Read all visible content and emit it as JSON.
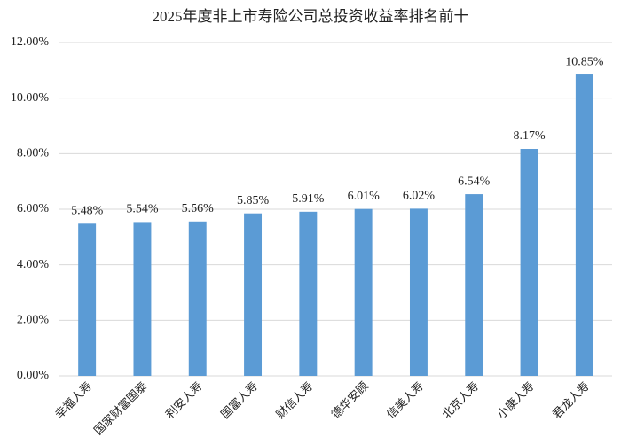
{
  "chart_data": {
    "type": "bar",
    "title": "2025年度非上市寿险公司总投资收益率排名前十",
    "categories": [
      "幸福人寿",
      "国家财富国泰",
      "利安人寿",
      "国富人寿",
      "财信人寿",
      "德华安顾",
      "信美人寿",
      "北京人寿",
      "小康人寿",
      "君龙人寿"
    ],
    "values": [
      5.48,
      5.54,
      5.56,
      5.85,
      5.91,
      6.01,
      6.02,
      6.54,
      8.17,
      10.85
    ],
    "value_labels": [
      "5.48%",
      "5.54%",
      "5.56%",
      "5.85%",
      "5.91%",
      "6.01%",
      "6.02%",
      "6.54%",
      "8.17%",
      "10.85%"
    ],
    "color": "#5b9bd5",
    "ylim": [
      0,
      12
    ],
    "yticks": [
      {
        "value": 0,
        "label": "0.00%"
      },
      {
        "value": 2,
        "label": "2.00%"
      },
      {
        "value": 4,
        "label": "4.00%"
      },
      {
        "value": 6,
        "label": "6.00%"
      },
      {
        "value": 8,
        "label": "8.00%"
      },
      {
        "value": 10,
        "label": "10.00%"
      },
      {
        "value": 12,
        "label": "12.00%"
      }
    ],
    "grid": true
  }
}
